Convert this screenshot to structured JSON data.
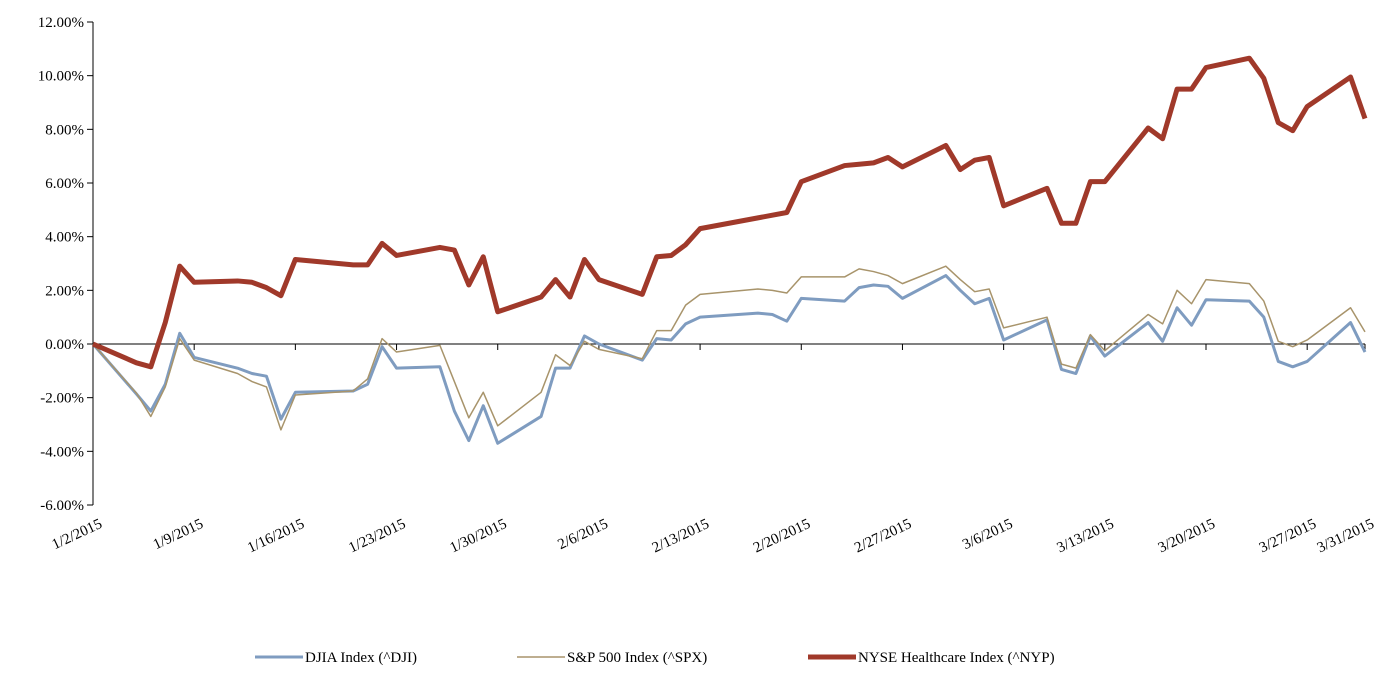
{
  "chart_data": {
    "type": "line",
    "x": [
      "2015-01-02",
      "2015-01-05",
      "2015-01-06",
      "2015-01-07",
      "2015-01-08",
      "2015-01-09",
      "2015-01-12",
      "2015-01-13",
      "2015-01-14",
      "2015-01-15",
      "2015-01-16",
      "2015-01-20",
      "2015-01-21",
      "2015-01-22",
      "2015-01-23",
      "2015-01-26",
      "2015-01-27",
      "2015-01-28",
      "2015-01-29",
      "2015-01-30",
      "2015-02-02",
      "2015-02-03",
      "2015-02-04",
      "2015-02-05",
      "2015-02-06",
      "2015-02-09",
      "2015-02-10",
      "2015-02-11",
      "2015-02-12",
      "2015-02-13",
      "2015-02-17",
      "2015-02-18",
      "2015-02-19",
      "2015-02-20",
      "2015-02-23",
      "2015-02-24",
      "2015-02-25",
      "2015-02-26",
      "2015-02-27",
      "2015-03-02",
      "2015-03-03",
      "2015-03-04",
      "2015-03-05",
      "2015-03-06",
      "2015-03-09",
      "2015-03-10",
      "2015-03-11",
      "2015-03-12",
      "2015-03-13",
      "2015-03-16",
      "2015-03-17",
      "2015-03-18",
      "2015-03-19",
      "2015-03-20",
      "2015-03-23",
      "2015-03-24",
      "2015-03-25",
      "2015-03-26",
      "2015-03-27",
      "2015-03-30",
      "2015-03-31"
    ],
    "series": [
      {
        "name": "DJIA Index (^DJI)",
        "color": "#7f9cc0",
        "width": 3,
        "values": [
          0,
          -1.86,
          -2.5,
          -1.5,
          0.4,
          -0.5,
          -0.9,
          -1.1,
          -1.2,
          -2.8,
          -1.8,
          -1.75,
          -1.5,
          -0.1,
          -0.9,
          -0.85,
          -2.5,
          -3.6,
          -2.3,
          -3.7,
          -2.7,
          -0.9,
          -0.9,
          0.3,
          0,
          -0.6,
          0.2,
          0.15,
          0.75,
          1.0,
          1.15,
          1.1,
          0.85,
          1.7,
          1.6,
          2.1,
          2.2,
          2.15,
          1.7,
          2.55,
          2.0,
          1.5,
          1.7,
          0.15,
          0.9,
          -0.95,
          -1.1,
          0.3,
          -0.45,
          0.8,
          0.1,
          1.35,
          0.7,
          1.65,
          1.6,
          1.0,
          -0.65,
          -0.85,
          -0.65,
          0.8,
          -0.3
        ]
      },
      {
        "name": "S&P 500 Index (^SPX)",
        "color": "#a8946b",
        "width": 1.5,
        "values": [
          0,
          -1.83,
          -2.7,
          -1.6,
          0.2,
          -0.6,
          -1.1,
          -1.4,
          -1.6,
          -3.2,
          -1.9,
          -1.75,
          -1.3,
          0.2,
          -0.3,
          -0.05,
          -1.4,
          -2.75,
          -1.8,
          -3.05,
          -1.8,
          -0.4,
          -0.8,
          0.1,
          -0.2,
          -0.55,
          0.5,
          0.5,
          1.45,
          1.85,
          2.05,
          2.0,
          1.9,
          2.5,
          2.5,
          2.8,
          2.7,
          2.55,
          2.25,
          2.9,
          2.4,
          1.95,
          2.05,
          0.6,
          1.0,
          -0.75,
          -0.9,
          0.35,
          -0.25,
          1.1,
          0.75,
          2.0,
          1.5,
          2.4,
          2.25,
          1.6,
          0.1,
          -0.1,
          0.15,
          1.35,
          0.45
        ]
      },
      {
        "name": "NYSE Healthcare Index (^NYP)",
        "color": "#a0392a",
        "width": 5,
        "values": [
          0,
          -0.7,
          -0.85,
          0.8,
          2.9,
          2.3,
          2.35,
          2.3,
          2.1,
          1.8,
          3.15,
          2.95,
          2.95,
          3.75,
          3.3,
          3.6,
          3.5,
          2.2,
          3.25,
          1.2,
          1.75,
          2.4,
          1.75,
          3.15,
          2.4,
          1.85,
          3.25,
          3.3,
          3.7,
          4.3,
          4.7,
          4.8,
          4.9,
          6.05,
          6.65,
          6.7,
          6.75,
          6.95,
          6.6,
          7.4,
          6.5,
          6.85,
          6.95,
          5.15,
          5.8,
          4.5,
          4.5,
          6.05,
          6.05,
          8.05,
          7.65,
          9.5,
          9.5,
          10.3,
          10.65,
          9.9,
          8.25,
          7.95,
          8.85,
          9.95,
          8.4
        ]
      }
    ],
    "xlim": [
      "2015-01-02",
      "2015-03-31"
    ],
    "xticks": [
      {
        "value": "2015-01-02",
        "label": "1/2/2015"
      },
      {
        "value": "2015-01-09",
        "label": "1/9/2015"
      },
      {
        "value": "2015-01-16",
        "label": "1/16/2015"
      },
      {
        "value": "2015-01-23",
        "label": "1/23/2015"
      },
      {
        "value": "2015-01-30",
        "label": "1/30/2015"
      },
      {
        "value": "2015-02-06",
        "label": "2/6/2015"
      },
      {
        "value": "2015-02-13",
        "label": "2/13/2015"
      },
      {
        "value": "2015-02-20",
        "label": "2/20/2015"
      },
      {
        "value": "2015-02-27",
        "label": "2/27/2015"
      },
      {
        "value": "2015-03-06",
        "label": "3/6/2015"
      },
      {
        "value": "2015-03-13",
        "label": "3/13/2015"
      },
      {
        "value": "2015-03-20",
        "label": "3/20/2015"
      },
      {
        "value": "2015-03-27",
        "label": "3/27/2015"
      },
      {
        "value": "2015-03-31",
        "label": "3/31/2015"
      }
    ],
    "ylim": [
      -6,
      12
    ],
    "yticks": [
      {
        "value": -6,
        "label": "-6.00%"
      },
      {
        "value": -4,
        "label": "-4.00%"
      },
      {
        "value": -2,
        "label": "-2.00%"
      },
      {
        "value": 0,
        "label": "0.00%"
      },
      {
        "value": 2,
        "label": "2.00%"
      },
      {
        "value": 4,
        "label": "4.00%"
      },
      {
        "value": 6,
        "label": "6.00%"
      },
      {
        "value": 8,
        "label": "8.00%"
      },
      {
        "value": 10,
        "label": "10.00%"
      },
      {
        "value": 12,
        "label": "12.00%"
      }
    ],
    "legend": "bottom"
  }
}
